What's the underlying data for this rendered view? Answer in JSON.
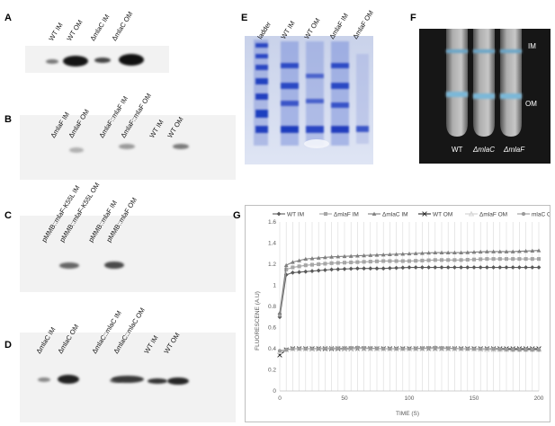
{
  "panels": {
    "A": {
      "letter": "A",
      "lanes": [
        "WT IM",
        "WT OM",
        "ΔmlaC IM",
        "ΔmlaC OM"
      ]
    },
    "B": {
      "letter": "B",
      "lanes": [
        "ΔmlaF IM",
        "ΔmlaF OM",
        "ΔmlaF::mlaF IM",
        "ΔmlaF::mlaF OM",
        "WT IM",
        "WT OM"
      ]
    },
    "C": {
      "letter": "C",
      "lanes": [
        "pMMB::mlaF-K55L IM",
        "pMMB::mlaF-K55L OM",
        "pMMB::mlaF IM",
        "pMMB::mlaF OM"
      ]
    },
    "D": {
      "letter": "D",
      "lanes": [
        "ΔmlaC IM",
        "ΔmlaC OM",
        "ΔmlaC::mlaC IM",
        "ΔmlaC::mlaC OM",
        "WT IM",
        "WT OM"
      ]
    },
    "E": {
      "letter": "E",
      "lanes": [
        "ladder",
        "WT IM",
        "WT OM",
        "ΔmlaF IM",
        "ΔmlaF OM"
      ]
    },
    "F": {
      "letter": "F",
      "tube_labels": [
        "WT",
        "ΔmlaC",
        "ΔmlaF"
      ],
      "fractions": [
        "IM",
        "OM"
      ]
    },
    "G": {
      "letter": "G"
    }
  },
  "chart_data": {
    "type": "line",
    "title": "",
    "xlabel": "TIME (S)",
    "ylabel": "FLUORESCENE (A.U)",
    "xlim": [
      0,
      200
    ],
    "ylim": [
      0,
      1.6
    ],
    "xticks": [
      0,
      50,
      100,
      150,
      200
    ],
    "yticks": [
      0,
      0.2,
      0.4,
      0.6,
      0.8,
      1,
      1.2,
      1.4,
      1.6
    ],
    "grid": "vertical",
    "legend_position": "top",
    "series": [
      {
        "name": "WT IM",
        "color": "#595959",
        "marker": "diamond",
        "x": [
          0,
          5,
          10,
          20,
          40,
          60,
          80,
          100,
          120,
          140,
          160,
          180,
          200
        ],
        "y": [
          0.7,
          1.1,
          1.12,
          1.13,
          1.15,
          1.16,
          1.16,
          1.17,
          1.17,
          1.17,
          1.17,
          1.17,
          1.17
        ]
      },
      {
        "name": "ΔmlaF IM",
        "color": "#a6a6a6",
        "marker": "square",
        "x": [
          0,
          5,
          10,
          20,
          40,
          60,
          80,
          100,
          120,
          140,
          160,
          180,
          200
        ],
        "y": [
          0.72,
          1.15,
          1.17,
          1.19,
          1.21,
          1.22,
          1.23,
          1.23,
          1.24,
          1.24,
          1.25,
          1.25,
          1.25
        ]
      },
      {
        "name": "ΔmlaC IM",
        "color": "#7f7f7f",
        "marker": "triangle",
        "x": [
          0,
          5,
          10,
          20,
          40,
          60,
          80,
          100,
          120,
          140,
          160,
          180,
          200
        ],
        "y": [
          0.74,
          1.19,
          1.22,
          1.25,
          1.27,
          1.28,
          1.29,
          1.3,
          1.31,
          1.31,
          1.32,
          1.32,
          1.33
        ]
      },
      {
        "name": "WT OM",
        "color": "#262626",
        "marker": "x",
        "x": [
          0,
          5,
          10,
          20,
          40,
          60,
          80,
          100,
          120,
          140,
          160,
          180,
          200
        ],
        "y": [
          0.34,
          0.39,
          0.4,
          0.4,
          0.4,
          0.4,
          0.4,
          0.4,
          0.4,
          0.4,
          0.4,
          0.4,
          0.4
        ]
      },
      {
        "name": "ΔmlaF OM",
        "color": "#d0d0d0",
        "marker": "triangle-open",
        "x": [
          0,
          5,
          10,
          20,
          40,
          60,
          80,
          100,
          120,
          140,
          160,
          180,
          200
        ],
        "y": [
          0.37,
          0.39,
          0.4,
          0.4,
          0.41,
          0.4,
          0.4,
          0.4,
          0.4,
          0.4,
          0.39,
          0.39,
          0.39
        ]
      },
      {
        "name": "mlaC OM",
        "color": "#9a9a9a",
        "marker": "circle",
        "x": [
          0,
          5,
          10,
          20,
          40,
          60,
          80,
          100,
          120,
          140,
          160,
          180,
          200
        ],
        "y": [
          0.38,
          0.39,
          0.4,
          0.4,
          0.4,
          0.41,
          0.4,
          0.4,
          0.41,
          0.4,
          0.4,
          0.39,
          0.39
        ]
      }
    ]
  }
}
